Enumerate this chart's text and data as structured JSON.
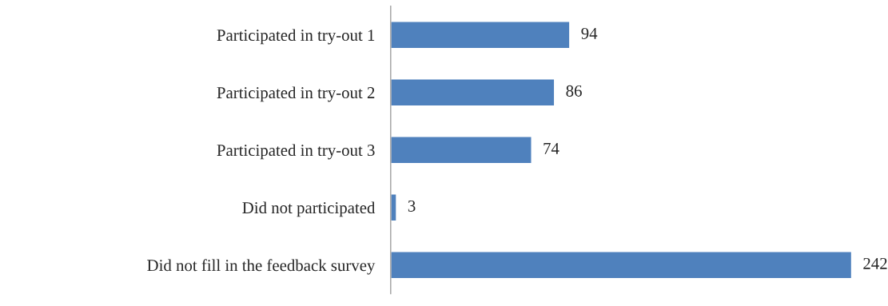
{
  "chart_data": {
    "type": "bar",
    "orientation": "horizontal",
    "categories": [
      "Participated in try-out 1",
      "Participated in try-out 2",
      "Participated in try-out 3",
      "Did not participated",
      "Did not fill in the feedback survey"
    ],
    "values": [
      94,
      86,
      74,
      3,
      242
    ],
    "color": "#4f81bd",
    "data_labels": true,
    "grid": false,
    "legend": false
  }
}
